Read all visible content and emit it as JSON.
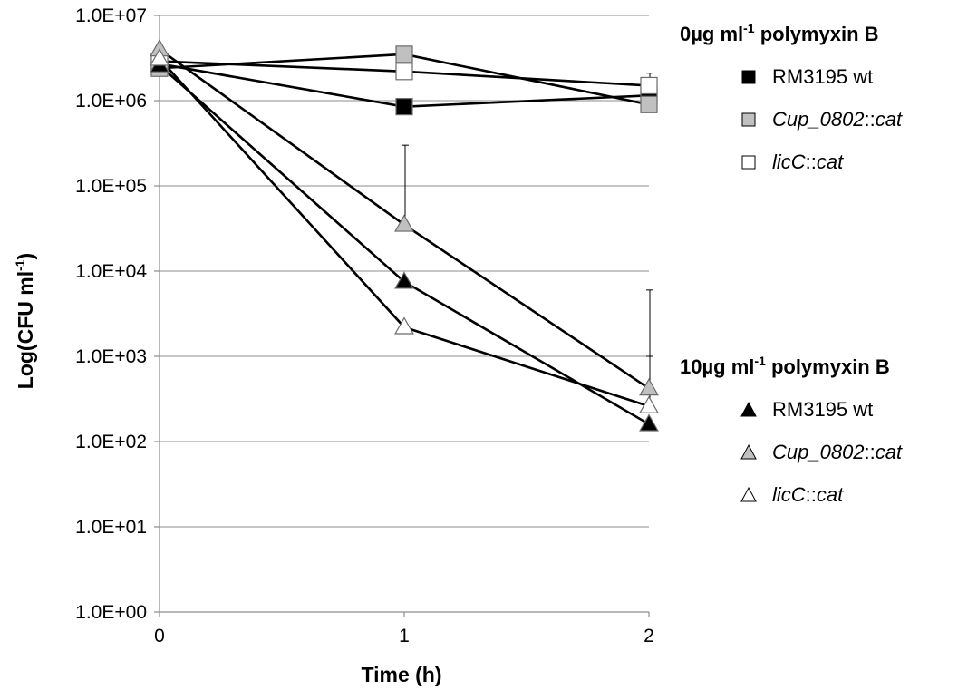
{
  "chart_data": {
    "type": "line",
    "title": "",
    "xlabel": "Time (h)",
    "ylabel": {
      "main": "Log(CFU ml",
      "sup": "-1",
      "close": ")"
    },
    "x": [
      0,
      1,
      2
    ],
    "x_tick_labels": [
      "0",
      "1",
      "2"
    ],
    "y_scale": "log",
    "ylim": [
      1,
      10000000
    ],
    "y_tick_labels": [
      "1.0E+07",
      "1.0E+06",
      "1.0E+05",
      "1.0E+04",
      "1.0E+03",
      "1.0E+02",
      "1.0E+01",
      "1.0E+00"
    ],
    "y_tick_values": [
      10000000,
      1000000,
      100000,
      10000,
      1000,
      100,
      10,
      1
    ],
    "grid": "horizontal",
    "legend_placement": "right",
    "groups": [
      {
        "heading": {
          "pre": "0µg ml",
          "sup": "-1",
          "post": " polymyxin B"
        },
        "marker": "square",
        "series": [
          {
            "name": "RM3195 wt",
            "name_parts": [
              {
                "t": "RM3195 wt",
                "i": false
              }
            ],
            "fill": "#000000",
            "values": [
              2700000,
              850000,
              1150000
            ],
            "err_upper": [
              null,
              null,
              null
            ]
          },
          {
            "name": "Cup_0802::cat",
            "name_parts": [
              {
                "t": "Cup_0802",
                "i": true
              },
              {
                "t": "::",
                "i": false
              },
              {
                "t": "cat",
                "i": true
              }
            ],
            "fill": "#c0c0c0",
            "values": [
              2400000,
              3500000,
              900000
            ],
            "err_upper": [
              null,
              null,
              null
            ]
          },
          {
            "name": "licC::cat",
            "name_parts": [
              {
                "t": "licC",
                "i": true
              },
              {
                "t": "::",
                "i": false
              },
              {
                "t": "cat",
                "i": true
              }
            ],
            "fill": "#ffffff",
            "values": [
              2900000,
              2200000,
              1500000
            ],
            "err_upper": [
              null,
              null,
              2100000
            ]
          }
        ]
      },
      {
        "heading": {
          "pre": "10µg ml",
          "sup": "-1",
          "post": " polymyxin B"
        },
        "marker": "triangle",
        "series": [
          {
            "name": "RM3195 wt",
            "name_parts": [
              {
                "t": "RM3195 wt",
                "i": false
              }
            ],
            "fill": "#000000",
            "values": [
              2600000,
              7500,
              160
            ],
            "err_upper": [
              null,
              null,
              null
            ]
          },
          {
            "name": "Cup_0802::cat",
            "name_parts": [
              {
                "t": "Cup_0802",
                "i": true
              },
              {
                "t": "::",
                "i": false
              },
              {
                "t": "cat",
                "i": true
              }
            ],
            "fill": "#c0c0c0",
            "values": [
              4000000,
              35000,
              420
            ],
            "err_upper": [
              null,
              300000,
              6000
            ]
          },
          {
            "name": "licC::cat",
            "name_parts": [
              {
                "t": "licC",
                "i": true
              },
              {
                "t": "::",
                "i": false
              },
              {
                "t": "cat",
                "i": true
              }
            ],
            "fill": "#ffffff",
            "values": [
              3100000,
              2200,
              260
            ],
            "err_upper": [
              null,
              null,
              1000
            ]
          }
        ]
      }
    ]
  }
}
